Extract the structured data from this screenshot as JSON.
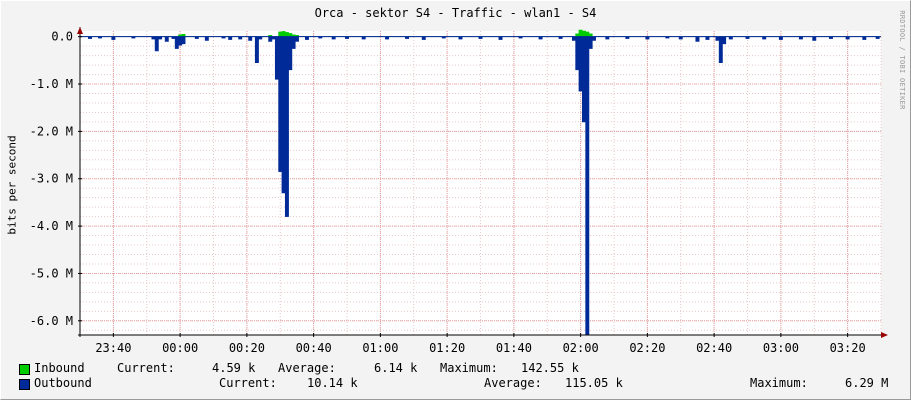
{
  "chart_data": {
    "type": "area",
    "title": "Orca - sektor S4 - Traffic - wlan1 - S4",
    "ylabel": "bits per second",
    "ylim": [
      -6.3,
      0.12
    ],
    "y_unit": "M bits per second",
    "yticks": [
      {
        "value": 0.0,
        "label": "0.0"
      },
      {
        "value": -1.0,
        "label": "-1.0 M"
      },
      {
        "value": -2.0,
        "label": "-2.0 M"
      },
      {
        "value": -3.0,
        "label": "-3.0 M"
      },
      {
        "value": -4.0,
        "label": "-4.0 M"
      },
      {
        "value": -5.0,
        "label": "-5.0 M"
      },
      {
        "value": -6.0,
        "label": "-6.0 M"
      }
    ],
    "xlim": [
      "23:30",
      "03:30"
    ],
    "xticks": [
      "23:40",
      "00:00",
      "00:20",
      "00:40",
      "01:00",
      "01:20",
      "01:40",
      "02:00",
      "02:20",
      "02:40",
      "03:00",
      "03:20"
    ],
    "grid": true,
    "series": [
      {
        "name": "Inbound",
        "color": "#00cc00",
        "sign": "positive",
        "points": [
          [
            "00:00",
            0.04
          ],
          [
            "00:01",
            0.05
          ],
          [
            "00:27",
            0.03
          ],
          [
            "00:30",
            0.1
          ],
          [
            "00:31",
            0.11
          ],
          [
            "00:32",
            0.09
          ],
          [
            "00:33",
            0.07
          ],
          [
            "00:34",
            0.04
          ],
          [
            "00:35",
            0.03
          ],
          [
            "01:59",
            0.06
          ],
          [
            "02:00",
            0.14
          ],
          [
            "02:01",
            0.12
          ],
          [
            "02:02",
            0.1
          ],
          [
            "02:03",
            0.06
          ]
        ]
      },
      {
        "name": "Outbound",
        "color": "#002a97",
        "sign": "negative",
        "points": [
          [
            "23:33",
            -0.04
          ],
          [
            "23:36",
            -0.03
          ],
          [
            "23:40",
            -0.06
          ],
          [
            "23:46",
            -0.03
          ],
          [
            "23:52",
            -0.05
          ],
          [
            "23:53",
            -0.3
          ],
          [
            "23:54",
            -0.05
          ],
          [
            "23:56",
            -0.1
          ],
          [
            "23:58",
            -0.04
          ],
          [
            "23:59",
            -0.25
          ],
          [
            "00:00",
            -0.18
          ],
          [
            "00:01",
            -0.15
          ],
          [
            "00:05",
            -0.04
          ],
          [
            "00:08",
            -0.08
          ],
          [
            "00:13",
            -0.03
          ],
          [
            "00:15",
            -0.06
          ],
          [
            "00:18",
            -0.05
          ],
          [
            "00:21",
            -0.08
          ],
          [
            "00:23",
            -0.55
          ],
          [
            "00:24",
            -0.05
          ],
          [
            "00:27",
            -0.1
          ],
          [
            "00:28",
            -0.05
          ],
          [
            "00:29",
            -0.9
          ],
          [
            "00:30",
            -2.85
          ],
          [
            "00:31",
            -3.3
          ],
          [
            "00:32",
            -3.8
          ],
          [
            "00:33",
            -0.7
          ],
          [
            "00:34",
            -0.25
          ],
          [
            "00:35",
            -0.1
          ],
          [
            "00:38",
            -0.06
          ],
          [
            "00:42",
            -0.03
          ],
          [
            "00:46",
            -0.05
          ],
          [
            "00:50",
            -0.04
          ],
          [
            "00:55",
            -0.05
          ],
          [
            "01:02",
            -0.05
          ],
          [
            "01:08",
            -0.04
          ],
          [
            "01:13",
            -0.06
          ],
          [
            "01:19",
            -0.03
          ],
          [
            "01:24",
            -0.05
          ],
          [
            "01:30",
            -0.04
          ],
          [
            "01:36",
            -0.06
          ],
          [
            "01:42",
            -0.03
          ],
          [
            "01:48",
            -0.05
          ],
          [
            "01:54",
            -0.04
          ],
          [
            "01:58",
            -0.08
          ],
          [
            "01:59",
            -0.7
          ],
          [
            "02:00",
            -1.15
          ],
          [
            "02:01",
            -1.8
          ],
          [
            "02:02",
            -6.29
          ],
          [
            "02:03",
            -0.25
          ],
          [
            "02:04",
            -0.08
          ],
          [
            "02:08",
            -0.05
          ],
          [
            "02:14",
            -0.04
          ],
          [
            "02:20",
            -0.05
          ],
          [
            "02:26",
            -0.03
          ],
          [
            "02:30",
            -0.05
          ],
          [
            "02:35",
            -0.1
          ],
          [
            "02:38",
            -0.06
          ],
          [
            "02:41",
            -0.08
          ],
          [
            "02:42",
            -0.55
          ],
          [
            "02:43",
            -0.15
          ],
          [
            "02:45",
            -0.05
          ],
          [
            "02:50",
            -0.04
          ],
          [
            "02:55",
            -0.05
          ],
          [
            "03:00",
            -0.06
          ],
          [
            "03:06",
            -0.05
          ],
          [
            "03:10",
            -0.08
          ],
          [
            "03:15",
            -0.04
          ],
          [
            "03:20",
            -0.05
          ],
          [
            "03:25",
            -0.06
          ],
          [
            "03:29",
            -0.04
          ]
        ]
      }
    ]
  },
  "legend": {
    "inbound": {
      "name": "Inbound",
      "current_label": "Current:",
      "current": "4.59 k",
      "average_label": "Average:",
      "average": "6.14 k",
      "maximum_label": "Maximum:",
      "maximum": "142.55 k"
    },
    "outbound": {
      "name": "Outbound",
      "current_label": "Current:",
      "current": "10.14 k",
      "average_label": "Average:",
      "average": "115.05 k",
      "maximum_label": "Maximum:",
      "maximum": "6.29 M"
    }
  },
  "watermark": "RRDTOOL / TOBI OETIKER"
}
